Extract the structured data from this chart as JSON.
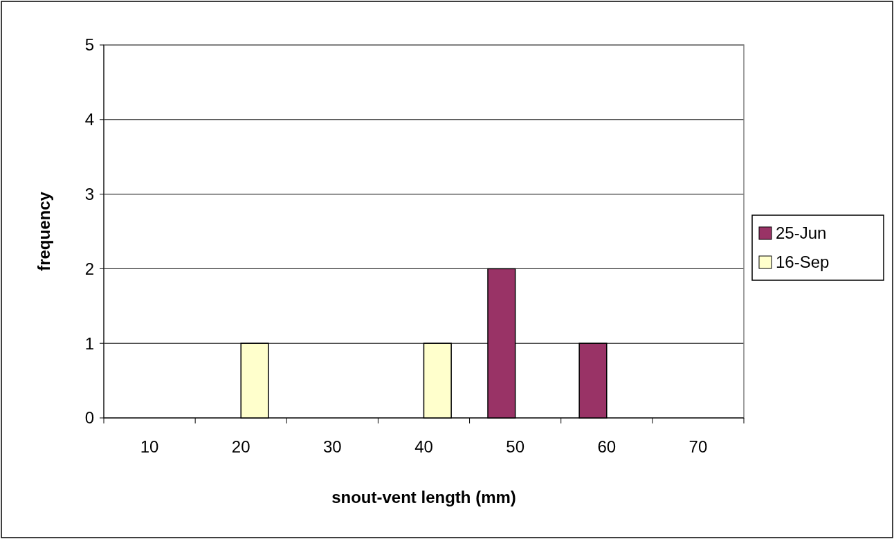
{
  "chart_data": {
    "type": "bar",
    "xlabel": "snout-vent length (mm)",
    "ylabel": "frequency",
    "categories": [
      "10",
      "20",
      "30",
      "40",
      "50",
      "60",
      "70"
    ],
    "series": [
      {
        "name": "25-Jun",
        "color": "#993366",
        "values": [
          0,
          0,
          0,
          0,
          2,
          1,
          0
        ]
      },
      {
        "name": "16-Sep",
        "color": "#ffffcc",
        "values": [
          0,
          1,
          0,
          1,
          0,
          0,
          0
        ]
      }
    ],
    "ylim": [
      0,
      5
    ],
    "yticks": [
      0,
      1,
      2,
      3,
      4,
      5
    ],
    "grid": "y",
    "legend": "right"
  }
}
